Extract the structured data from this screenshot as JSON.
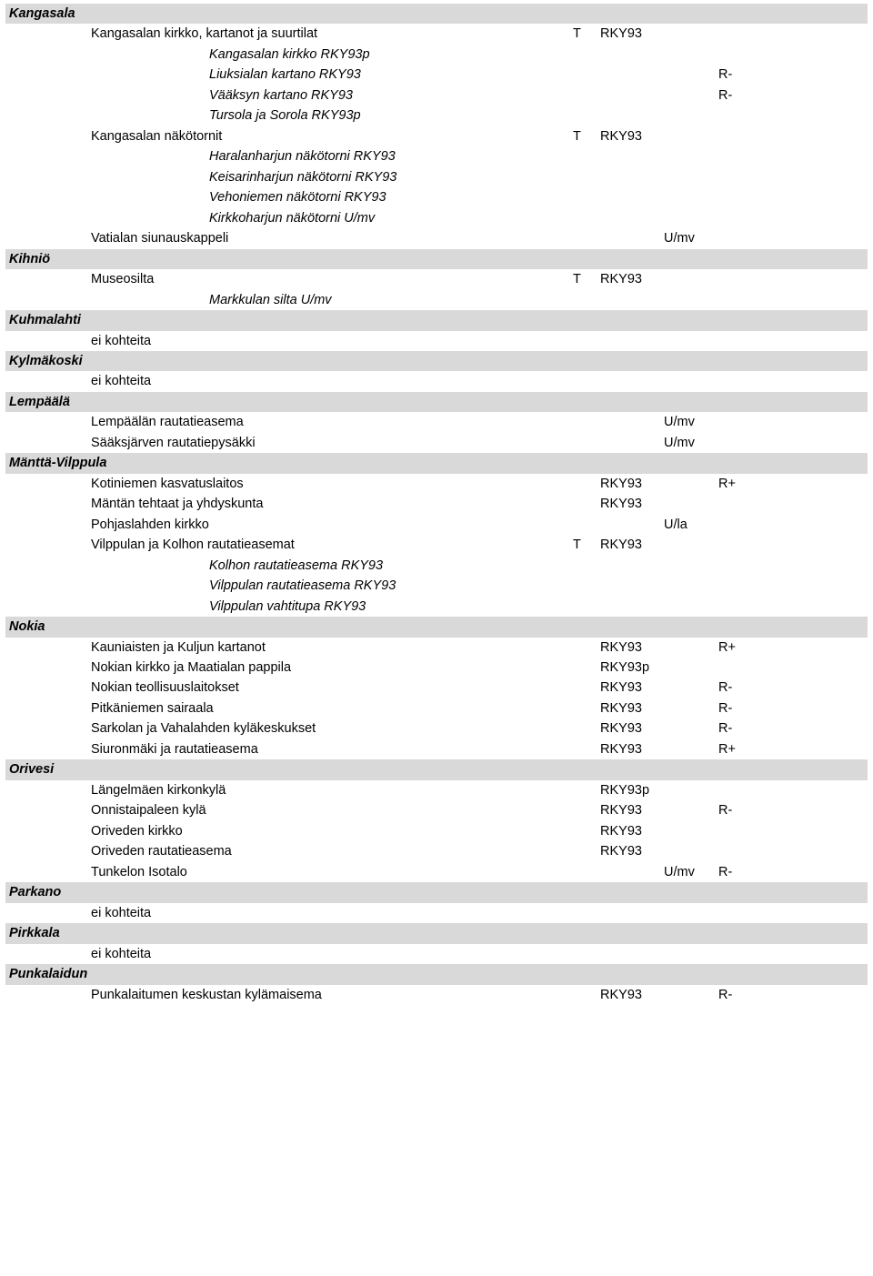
{
  "sections": [
    {
      "header": "Kangasala",
      "rows": [
        {
          "in": 1,
          "text": "Kangasalan kirkko, kartanot ja suurtilat",
          "t": "T",
          "c3": "RKY93"
        },
        {
          "in": 2,
          "text": "Kangasalan kirkko RKY93p"
        },
        {
          "in": 2,
          "text": "Liuksialan kartano RKY93",
          "c5": "R-"
        },
        {
          "in": 2,
          "text": "Vääksyn kartano RKY93",
          "c5": "R-"
        },
        {
          "in": 2,
          "text": "Tursola ja Sorola RKY93p"
        },
        {
          "in": 1,
          "text": "Kangasalan näkötornit",
          "t": "T",
          "c3": "RKY93"
        },
        {
          "in": 2,
          "text": "Haralanharjun näkötorni RKY93"
        },
        {
          "in": 2,
          "text": "Keisarinharjun näkötorni RKY93"
        },
        {
          "in": 2,
          "text": "Vehoniemen näkötorni RKY93"
        },
        {
          "in": 2,
          "text": "Kirkkoharjun näkötorni U/mv"
        },
        {
          "in": 1,
          "text": "Vatialan siunauskappeli",
          "c4": "U/mv"
        }
      ]
    },
    {
      "header": "Kihniö",
      "rows": [
        {
          "in": 1,
          "text": "Museosilta",
          "t": "T",
          "c3": "RKY93"
        },
        {
          "in": 2,
          "text": "Markkulan silta U/mv"
        }
      ]
    },
    {
      "header": "Kuhmalahti",
      "rows": [
        {
          "in": 1,
          "text": "ei kohteita"
        }
      ]
    },
    {
      "header": "Kylmäkoski",
      "rows": [
        {
          "in": 1,
          "text": "ei kohteita"
        }
      ]
    },
    {
      "header": "Lempäälä",
      "rows": [
        {
          "in": 1,
          "text": "Lempäälän rautatieasema",
          "c4": "U/mv"
        },
        {
          "in": 1,
          "text": "Sääksjärven rautatiepysäkki",
          "c4": "U/mv"
        }
      ]
    },
    {
      "header": "Mänttä-Vilppula",
      "rows": [
        {
          "in": 1,
          "text": "Kotiniemen kasvatuslaitos",
          "c3": "RKY93",
          "c5": "R+"
        },
        {
          "in": 1,
          "text": "Mäntän tehtaat ja yhdyskunta",
          "c3": "RKY93"
        },
        {
          "in": 1,
          "text": "Pohjaslahden kirkko",
          "c4": "U/la"
        },
        {
          "in": 1,
          "text": "Vilppulan ja Kolhon rautatieasemat",
          "t": "T",
          "c3": "RKY93"
        },
        {
          "in": 2,
          "text": "Kolhon rautatieasema RKY93"
        },
        {
          "in": 2,
          "text": "Vilppulan rautatieasema RKY93"
        },
        {
          "in": 2,
          "text": "Vilppulan vahtitupa RKY93"
        }
      ]
    },
    {
      "header": "Nokia",
      "rows": [
        {
          "in": 1,
          "text": "Kauniaisten ja Kuljun kartanot",
          "c3": "RKY93",
          "c5": "R+"
        },
        {
          "in": 1,
          "text": "Nokian kirkko ja Maatialan pappila",
          "c3": "RKY93p"
        },
        {
          "in": 1,
          "text": "Nokian teollisuuslaitokset",
          "c3": "RKY93",
          "c5": "R-"
        },
        {
          "in": 1,
          "text": "Pitkäniemen sairaala",
          "c3": "RKY93",
          "c5": "R-"
        },
        {
          "in": 1,
          "text": "Sarkolan ja Vahalahden kyläkeskukset",
          "c3": "RKY93",
          "c5": "R-"
        },
        {
          "in": 1,
          "text": "Siuronmäki ja rautatieasema",
          "c3": "RKY93",
          "c5": "R+"
        }
      ]
    },
    {
      "header": "Orivesi",
      "rows": [
        {
          "in": 1,
          "text": "Längelmäen kirkonkylä",
          "c3": "RKY93p"
        },
        {
          "in": 1,
          "text": "Onnistaipaleen kylä",
          "c3": "RKY93",
          "c5": "R-"
        },
        {
          "in": 1,
          "text": "Oriveden kirkko",
          "c3": "RKY93"
        },
        {
          "in": 1,
          "text": "Oriveden rautatieasema",
          "c3": "RKY93"
        },
        {
          "in": 1,
          "text": "Tunkelon Isotalo",
          "c4": "U/mv",
          "c5": "R-"
        }
      ]
    },
    {
      "header": "Parkano",
      "rows": [
        {
          "in": 1,
          "text": "ei kohteita"
        }
      ]
    },
    {
      "header": "Pirkkala",
      "rows": [
        {
          "in": 1,
          "text": "ei kohteita"
        }
      ]
    },
    {
      "header": "Punkalaidun",
      "rows": [
        {
          "in": 1,
          "text": "Punkalaitumen keskustan kylämaisema",
          "c3": "RKY93",
          "c5": "R-"
        }
      ]
    }
  ]
}
